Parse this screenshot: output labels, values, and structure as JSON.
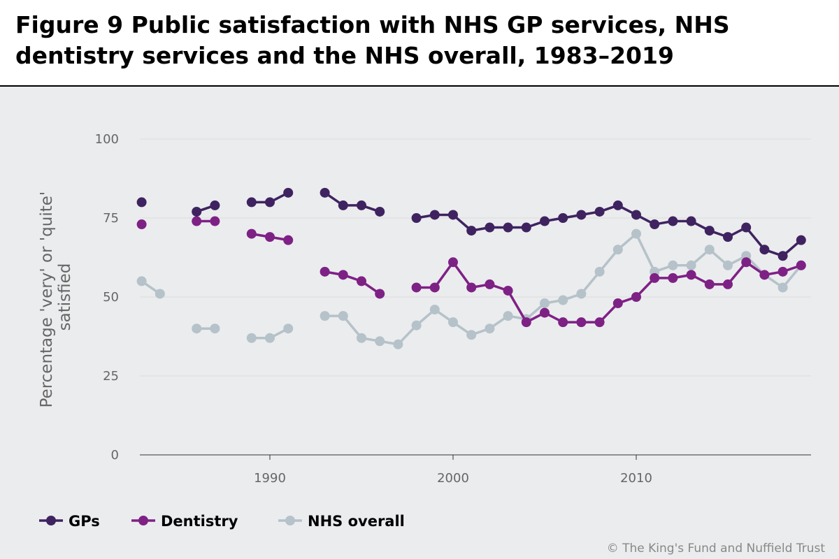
{
  "title": "Figure 9 Public satisfaction with NHS GP services, NHS dentistry services and the NHS overall, 1983–2019",
  "credit": "© The King's Fund and Nuffield Trust",
  "chart_data": {
    "type": "line",
    "title": "Figure 9 Public satisfaction with NHS GP services, NHS dentistry services and the NHS overall, 1983–2019",
    "xlabel": "",
    "ylabel_lines": [
      "Percentage 'very' or 'quite'",
      "satisfied"
    ],
    "ylim": [
      0,
      100
    ],
    "xlim": [
      1983,
      2019
    ],
    "yticks": [
      "0",
      "25",
      "50",
      "75",
      "100"
    ],
    "xticks": [
      "1990",
      "2000",
      "2010"
    ],
    "grid": "horizontal",
    "legend": "bottom-left",
    "x": [
      1983,
      1984,
      1985,
      1986,
      1987,
      1988,
      1989,
      1990,
      1991,
      1992,
      1993,
      1994,
      1995,
      1996,
      1997,
      1998,
      1999,
      2000,
      2001,
      2002,
      2003,
      2004,
      2005,
      2006,
      2007,
      2008,
      2009,
      2010,
      2011,
      2012,
      2013,
      2014,
      2015,
      2016,
      2017,
      2018,
      2019
    ],
    "series": [
      {
        "name": "GPs",
        "color": "#3f2360",
        "values": [
          80,
          null,
          null,
          77,
          79,
          null,
          80,
          80,
          83,
          null,
          83,
          79,
          79,
          77,
          null,
          75,
          76,
          76,
          71,
          72,
          72,
          72,
          74,
          75,
          76,
          77,
          79,
          76,
          73,
          74,
          74,
          71,
          69,
          72,
          65,
          63,
          68
        ]
      },
      {
        "name": "Dentistry",
        "color": "#7e2185",
        "values": [
          73,
          null,
          null,
          74,
          74,
          null,
          70,
          69,
          68,
          null,
          58,
          57,
          55,
          51,
          null,
          53,
          53,
          61,
          53,
          54,
          52,
          42,
          45,
          42,
          42,
          42,
          48,
          50,
          56,
          56,
          57,
          54,
          54,
          61,
          57,
          58,
          60
        ]
      },
      {
        "name": "NHS overall",
        "color": "#b5c2c9",
        "values": [
          55,
          51,
          null,
          40,
          40,
          null,
          37,
          37,
          40,
          null,
          44,
          44,
          37,
          36,
          35,
          41,
          46,
          42,
          38,
          40,
          44,
          43,
          48,
          49,
          51,
          58,
          65,
          70,
          58,
          60,
          60,
          65,
          60,
          63,
          57,
          53,
          60
        ]
      }
    ]
  }
}
